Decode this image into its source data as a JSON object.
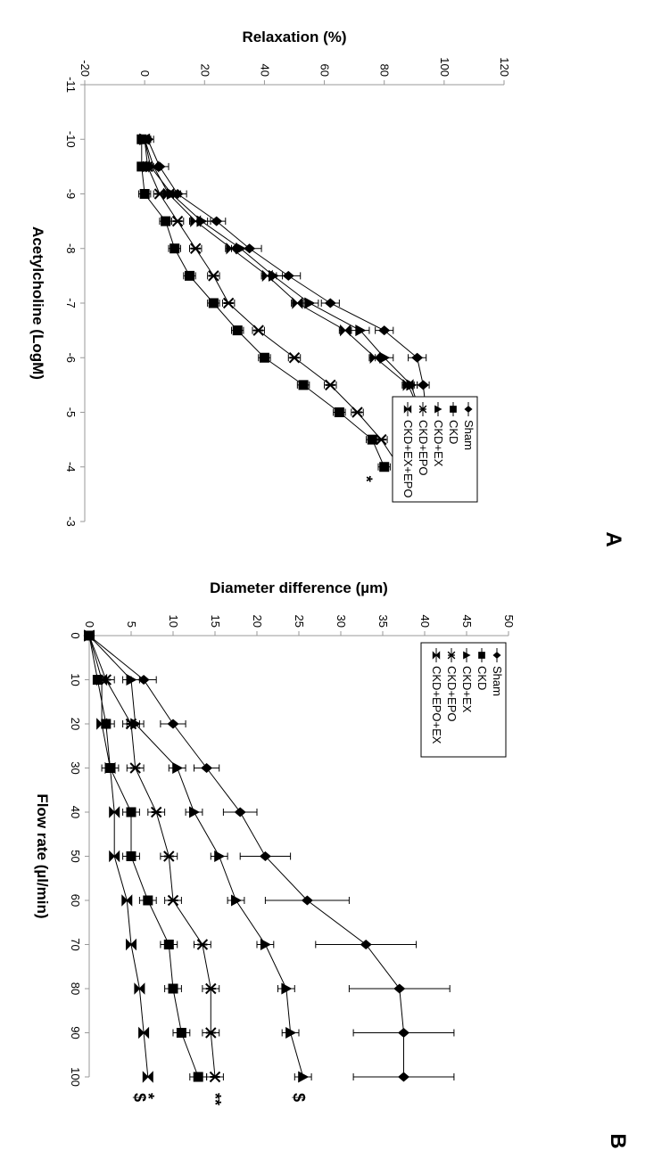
{
  "chart_data": [
    {
      "type": "line",
      "panel_label": "A",
      "xlabel": "Acetylcholine (LogM)",
      "ylabel": "Relaxation (%)",
      "xlim": [
        -11,
        -3
      ],
      "ylim": [
        -20,
        120
      ],
      "x_ticks": [
        -11,
        -10,
        -9,
        -8,
        -7,
        -6,
        -5,
        -4,
        -3
      ],
      "y_ticks": [
        -20,
        0,
        20,
        40,
        60,
        80,
        100,
        120
      ],
      "x_tick_labels": [
        "-11",
        "-10",
        "-9",
        "-8",
        "-7",
        "-6",
        "-5",
        "-4",
        "-3"
      ],
      "y_tick_labels": [
        "-20",
        "0",
        "20",
        "40",
        "60",
        "80",
        "100",
        "120"
      ],
      "grid": false,
      "legend_position": "top-right",
      "x": [
        -10,
        -9.5,
        -9,
        -8.5,
        -8,
        -7.5,
        -7,
        -6.5,
        -6,
        -5.5,
        -5,
        -4.5,
        -4
      ],
      "series": [
        {
          "name": "Sham",
          "marker": "diamond",
          "values": [
            1,
            5,
            11,
            24,
            35,
            48,
            62,
            80,
            91,
            93,
            94,
            96,
            96
          ],
          "errors": [
            2,
            3,
            3,
            3,
            4,
            4,
            3,
            3,
            3,
            2,
            2,
            2,
            2
          ]
        },
        {
          "name": "CKD",
          "marker": "square",
          "values": [
            -1,
            -1,
            0,
            7,
            10,
            15,
            23,
            31,
            40,
            53,
            65,
            76,
            80
          ],
          "errors": [
            1,
            1,
            2,
            2,
            2,
            2,
            2,
            2,
            2,
            2,
            2,
            2,
            2
          ]
        },
        {
          "name": "CKD+EX",
          "marker": "triangle",
          "values": [
            0,
            2,
            9,
            19,
            32,
            43,
            55,
            72,
            80,
            89,
            92,
            96,
            98
          ],
          "errors": [
            2,
            2,
            3,
            3,
            3,
            3,
            3,
            3,
            3,
            2,
            2,
            2,
            2
          ]
        },
        {
          "name": "CKD+EPO",
          "marker": "star",
          "values": [
            0,
            1,
            5,
            11,
            17,
            23,
            28,
            38,
            50,
            62,
            71,
            79,
            85
          ],
          "errors": [
            2,
            2,
            2,
            2,
            2,
            2,
            2,
            2,
            2,
            2,
            2,
            2,
            2
          ]
        },
        {
          "name": "CKD+EX+EPO",
          "marker": "bowtie",
          "values": [
            0,
            3,
            8,
            17,
            29,
            41,
            51,
            67,
            77,
            88,
            92,
            94,
            95
          ],
          "errors": [
            2,
            2,
            2,
            2,
            2,
            2,
            2,
            2,
            2,
            2,
            2,
            2,
            2
          ]
        }
      ],
      "annotations": [
        {
          "text": "*",
          "x": -4,
          "y": 74
        },
        {
          "text": "*",
          "x": -4,
          "y": 84
        }
      ]
    },
    {
      "type": "line",
      "panel_label": "B",
      "xlabel": "Flow rate (µl/min)",
      "ylabel": "Diameter difference (µm)",
      "xlim": [
        0,
        100
      ],
      "ylim": [
        0,
        50
      ],
      "x_ticks": [
        0,
        10,
        20,
        30,
        40,
        50,
        60,
        70,
        80,
        90,
        100
      ],
      "y_ticks": [
        0,
        5,
        10,
        15,
        20,
        25,
        30,
        35,
        40,
        45,
        50
      ],
      "x_tick_labels": [
        "0",
        "10",
        "20",
        "30",
        "40",
        "50",
        "60",
        "70",
        "80",
        "90",
        "100"
      ],
      "y_tick_labels": [
        "0",
        "5",
        "10",
        "15",
        "20",
        "25",
        "30",
        "35",
        "40",
        "45",
        "50"
      ],
      "grid": false,
      "legend_position": "top-left",
      "x": [
        0,
        10,
        20,
        30,
        40,
        50,
        60,
        70,
        80,
        90,
        100
      ],
      "series": [
        {
          "name": "Sham",
          "marker": "diamond",
          "values": [
            0,
            6.5,
            10,
            14,
            18,
            21,
            26,
            33,
            37,
            37.5,
            37.5
          ],
          "errors": [
            0,
            1.5,
            1.5,
            1.5,
            2,
            3,
            5,
            6,
            6,
            6,
            6
          ]
        },
        {
          "name": "CKD",
          "marker": "square",
          "values": [
            0,
            1,
            2,
            2.5,
            5,
            5,
            7,
            9.5,
            10,
            11,
            13
          ],
          "errors": [
            0,
            0.5,
            1,
            1,
            1,
            1,
            1,
            1,
            1,
            1,
            1
          ]
        },
        {
          "name": "CKD+EX",
          "marker": "triangle",
          "values": [
            0,
            5,
            5.5,
            10.5,
            12.5,
            15.5,
            17.5,
            21,
            23.5,
            24,
            25.5
          ],
          "errors": [
            0,
            1,
            1,
            1,
            1,
            1,
            1,
            1,
            1,
            1,
            1
          ]
        },
        {
          "name": "CKD+EPO",
          "marker": "star",
          "values": [
            0,
            2,
            5,
            5.5,
            8,
            9.5,
            10,
            13.5,
            14.5,
            14.5,
            15
          ],
          "errors": [
            0,
            1,
            1,
            1,
            1,
            1,
            1,
            1,
            1,
            1,
            1
          ]
        },
        {
          "name": "CKD+EPO+EX",
          "marker": "bowtie",
          "values": [
            0,
            1.5,
            1.5,
            2.5,
            3,
            3,
            4.5,
            5,
            6,
            6.5,
            7
          ],
          "errors": [
            0,
            0.5,
            0.5,
            0.5,
            0.5,
            0.5,
            0.5,
            0.5,
            0.5,
            0.5,
            0.5
          ]
        }
      ],
      "annotations": [
        {
          "text": "$",
          "x": 100,
          "y": 25
        },
        {
          "text": "**",
          "x": 100,
          "y": 15
        },
        {
          "text": "*",
          "x": 100,
          "y": 7
        },
        {
          "text": "$",
          "x": 100,
          "y": 6
        }
      ]
    }
  ]
}
